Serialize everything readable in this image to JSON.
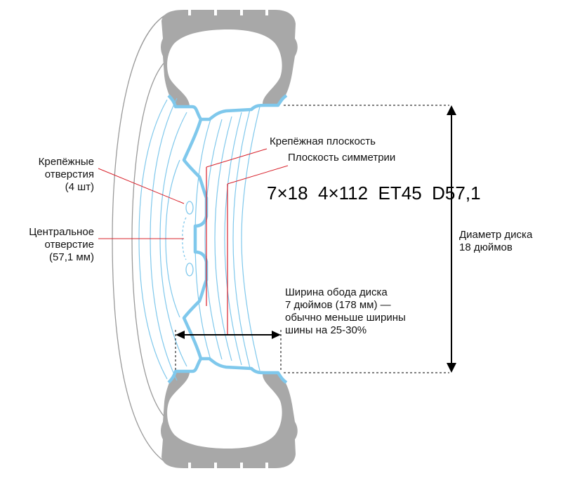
{
  "labels": {
    "mount_holes": [
      "Крепёжные",
      "отверстия",
      "(4 шт)"
    ],
    "center_bore": [
      "Центральное",
      "отверстие",
      "(57,1 мм)"
    ],
    "mount_plane": "Крепёжная плоскость",
    "symmetry_plane": "Плоскость симметрии",
    "diameter": [
      "Диаметр диска",
      "18 дюймов"
    ],
    "width": [
      "Ширина обода диска",
      "7 дюймов (178 мм) —",
      "обычно меньше ширины",
      "шины на 25-30%"
    ]
  },
  "spec": "7×18  4×112  ET45  D57,1",
  "colors": {
    "tire": "#a8a8a8",
    "rim": "#7fc8ec",
    "leader": "#d8202a",
    "dimension": "#000000"
  }
}
